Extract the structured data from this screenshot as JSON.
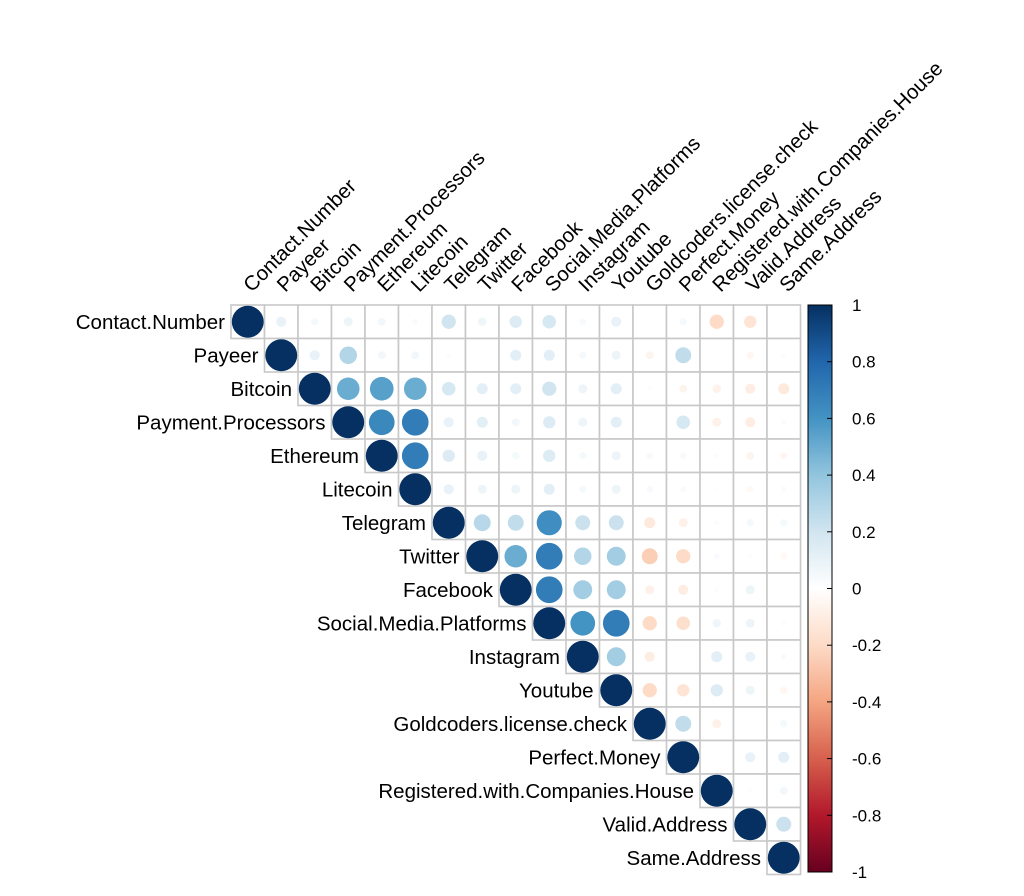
{
  "chart_data": {
    "type": "heatmap",
    "subtype": "correlation-upper-triangle-circles",
    "variables": [
      "Contact.Number",
      "Payeer",
      "Bitcoin",
      "Payment.Processors",
      "Ethereum",
      "Litecoin",
      "Telegram",
      "Twitter",
      "Facebook",
      "Social.Media.Platforms",
      "Instagram",
      "Youtube",
      "Goldcoders.license.check",
      "Perfect.Money",
      "Registered.with.Companies.House",
      "Valid.Address",
      "Same.Address"
    ],
    "matrix": [
      [
        1.0,
        0.1,
        0.05,
        0.08,
        0.06,
        0.03,
        0.2,
        0.07,
        0.15,
        0.18,
        0.04,
        0.1,
        0.0,
        0.05,
        -0.2,
        -0.15,
        0.0
      ],
      [
        null,
        1.0,
        0.1,
        0.3,
        0.06,
        0.06,
        0.02,
        0.01,
        0.12,
        0.12,
        0.05,
        0.08,
        -0.06,
        0.25,
        0.0,
        -0.05,
        -0.02
      ],
      [
        null,
        null,
        1.0,
        0.5,
        0.55,
        0.5,
        0.18,
        0.12,
        0.12,
        0.2,
        0.08,
        0.12,
        -0.02,
        -0.06,
        -0.07,
        -0.1,
        -0.12
      ],
      [
        null,
        null,
        null,
        1.0,
        0.65,
        0.7,
        0.1,
        0.12,
        0.06,
        0.15,
        0.08,
        0.12,
        0.0,
        0.18,
        -0.08,
        -0.1,
        -0.03
      ],
      [
        null,
        null,
        null,
        null,
        1.0,
        0.7,
        0.15,
        0.1,
        0.05,
        0.15,
        0.05,
        0.08,
        0.04,
        0.04,
        -0.02,
        -0.06,
        -0.05
      ],
      [
        null,
        null,
        null,
        null,
        null,
        1.0,
        0.1,
        0.08,
        0.08,
        0.12,
        0.05,
        0.08,
        0.04,
        0.03,
        -0.01,
        -0.04,
        -0.03
      ],
      [
        null,
        null,
        null,
        null,
        null,
        null,
        1.0,
        0.28,
        0.25,
        0.62,
        0.22,
        0.22,
        -0.12,
        -0.08,
        0.02,
        0.05,
        0.05
      ],
      [
        null,
        null,
        null,
        null,
        null,
        null,
        null,
        1.0,
        0.5,
        0.7,
        0.3,
        0.35,
        -0.25,
        -0.2,
        0.03,
        0.02,
        -0.04
      ],
      [
        null,
        null,
        null,
        null,
        null,
        null,
        null,
        null,
        1.0,
        0.7,
        0.35,
        0.35,
        -0.08,
        -0.1,
        0.02,
        0.08,
        0.0
      ],
      [
        null,
        null,
        null,
        null,
        null,
        null,
        null,
        null,
        null,
        1.0,
        0.6,
        0.7,
        -0.2,
        -0.18,
        0.07,
        0.08,
        0.02
      ],
      [
        null,
        null,
        null,
        null,
        null,
        null,
        null,
        null,
        null,
        null,
        1.0,
        0.35,
        -0.1,
        0.0,
        0.12,
        0.1,
        0.03
      ],
      [
        null,
        null,
        null,
        null,
        null,
        null,
        null,
        null,
        null,
        null,
        null,
        1.0,
        -0.2,
        -0.15,
        0.15,
        0.08,
        -0.05
      ],
      [
        null,
        null,
        null,
        null,
        null,
        null,
        null,
        null,
        null,
        null,
        null,
        null,
        1.0,
        0.25,
        -0.08,
        0.0,
        0.05
      ],
      [
        null,
        null,
        null,
        null,
        null,
        null,
        null,
        null,
        null,
        null,
        null,
        null,
        null,
        1.0,
        0.0,
        0.1,
        0.12
      ],
      [
        null,
        null,
        null,
        null,
        null,
        null,
        null,
        null,
        null,
        null,
        null,
        null,
        null,
        null,
        1.0,
        0.02,
        0.06
      ],
      [
        null,
        null,
        null,
        null,
        null,
        null,
        null,
        null,
        null,
        null,
        null,
        null,
        null,
        null,
        null,
        1.0,
        0.22
      ],
      [
        null,
        null,
        null,
        null,
        null,
        null,
        null,
        null,
        null,
        null,
        null,
        null,
        null,
        null,
        null,
        null,
        1.0
      ]
    ],
    "colorbar": {
      "range": [
        -1,
        1
      ],
      "ticks": [
        "1",
        "0.8",
        "0.6",
        "0.4",
        "0.2",
        "0",
        "-0.2",
        "-0.4",
        "-0.6",
        "-0.8",
        "-1"
      ],
      "tick_values": [
        1,
        0.8,
        0.6,
        0.4,
        0.2,
        0,
        -0.2,
        -0.4,
        -0.6,
        -0.8,
        -1
      ],
      "colors": [
        "#67001F",
        "#B2182B",
        "#D6604D",
        "#F4A582",
        "#FDDBC7",
        "#FFFFFF",
        "#D1E5F0",
        "#92C5DE",
        "#4393C3",
        "#2166AC",
        "#053061"
      ]
    }
  }
}
